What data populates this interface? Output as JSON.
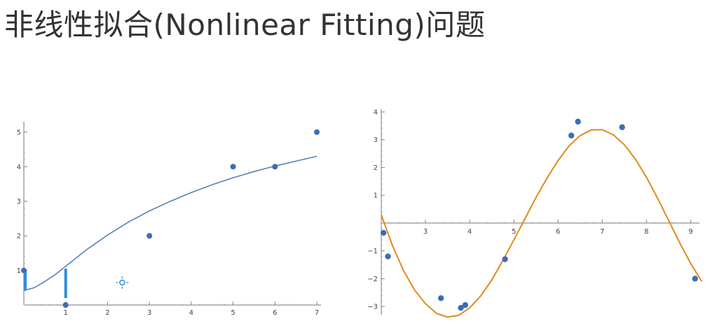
{
  "slide": {
    "title": "非线性拟合(Nonlinear Fitting)问题"
  },
  "chart_data": [
    {
      "type": "scatter",
      "title": "",
      "xlabel": "",
      "ylabel": "",
      "xlim": [
        0,
        7.1
      ],
      "ylim": [
        0,
        5.3
      ],
      "x_ticks": [
        1,
        2,
        3,
        4,
        5,
        6,
        7
      ],
      "y_ticks": [
        1,
        2,
        3,
        4,
        5
      ],
      "points": [
        [
          0,
          1
        ],
        [
          1,
          0
        ],
        [
          3,
          2
        ],
        [
          5,
          4
        ],
        [
          6,
          4
        ],
        [
          7,
          5
        ]
      ],
      "fit_curve": [
        [
          0,
          0.42
        ],
        [
          0.25,
          0.5
        ],
        [
          0.5,
          0.68
        ],
        [
          0.75,
          0.88
        ],
        [
          1,
          1.12
        ],
        [
          1.5,
          1.6
        ],
        [
          2,
          2.02
        ],
        [
          2.5,
          2.4
        ],
        [
          3,
          2.72
        ],
        [
          3.5,
          3.0
        ],
        [
          4,
          3.25
        ],
        [
          4.5,
          3.48
        ],
        [
          5,
          3.68
        ],
        [
          5.5,
          3.86
        ],
        [
          6,
          4.02
        ],
        [
          6.5,
          4.16
        ],
        [
          7,
          4.3
        ]
      ],
      "residual_bars": [
        [
          0,
          0.42,
          1.0
        ],
        [
          1,
          0.2,
          1.05
        ]
      ],
      "cursor_marker": [
        2.35,
        0.65
      ],
      "colors": {
        "points": "#3d6db5",
        "curve": "#5a7fba",
        "residual": "#2b8fd6"
      }
    },
    {
      "type": "scatter",
      "title": "",
      "xlabel": "",
      "ylabel": "",
      "xlim": [
        2.0,
        9.2
      ],
      "ylim": [
        -3.3,
        4.1
      ],
      "x_ticks": [
        3,
        4,
        5,
        6,
        7,
        8,
        9
      ],
      "y_ticks": [
        -3,
        -2,
        -1,
        1,
        2,
        3,
        4
      ],
      "points": [
        [
          2.05,
          -0.35
        ],
        [
          2.15,
          -1.2
        ],
        [
          3.35,
          -2.7
        ],
        [
          3.8,
          -3.05
        ],
        [
          3.9,
          -2.95
        ],
        [
          4.8,
          -1.3
        ],
        [
          6.3,
          3.15
        ],
        [
          6.45,
          3.65
        ],
        [
          7.45,
          3.45
        ],
        [
          9.1,
          -2.0
        ]
      ],
      "fit_curve": [
        [
          2.0,
          0.3
        ],
        [
          2.25,
          -0.8
        ],
        [
          2.5,
          -1.7
        ],
        [
          2.75,
          -2.4
        ],
        [
          3.0,
          -2.9
        ],
        [
          3.25,
          -3.25
        ],
        [
          3.5,
          -3.38
        ],
        [
          3.75,
          -3.32
        ],
        [
          4.0,
          -3.05
        ],
        [
          4.25,
          -2.62
        ],
        [
          4.5,
          -2.05
        ],
        [
          4.75,
          -1.35
        ],
        [
          5.0,
          -0.6
        ],
        [
          5.25,
          0.15
        ],
        [
          5.5,
          0.92
        ],
        [
          5.75,
          1.62
        ],
        [
          6.0,
          2.25
        ],
        [
          6.25,
          2.78
        ],
        [
          6.5,
          3.15
        ],
        [
          6.75,
          3.35
        ],
        [
          7.0,
          3.36
        ],
        [
          7.25,
          3.18
        ],
        [
          7.5,
          2.82
        ],
        [
          7.75,
          2.3
        ],
        [
          8.0,
          1.65
        ],
        [
          8.25,
          0.9
        ],
        [
          8.5,
          0.1
        ],
        [
          8.75,
          -0.7
        ],
        [
          9.0,
          -1.45
        ],
        [
          9.25,
          -2.1
        ]
      ],
      "colors": {
        "points": "#3d6db5",
        "curve": "#e08a1e"
      }
    }
  ]
}
